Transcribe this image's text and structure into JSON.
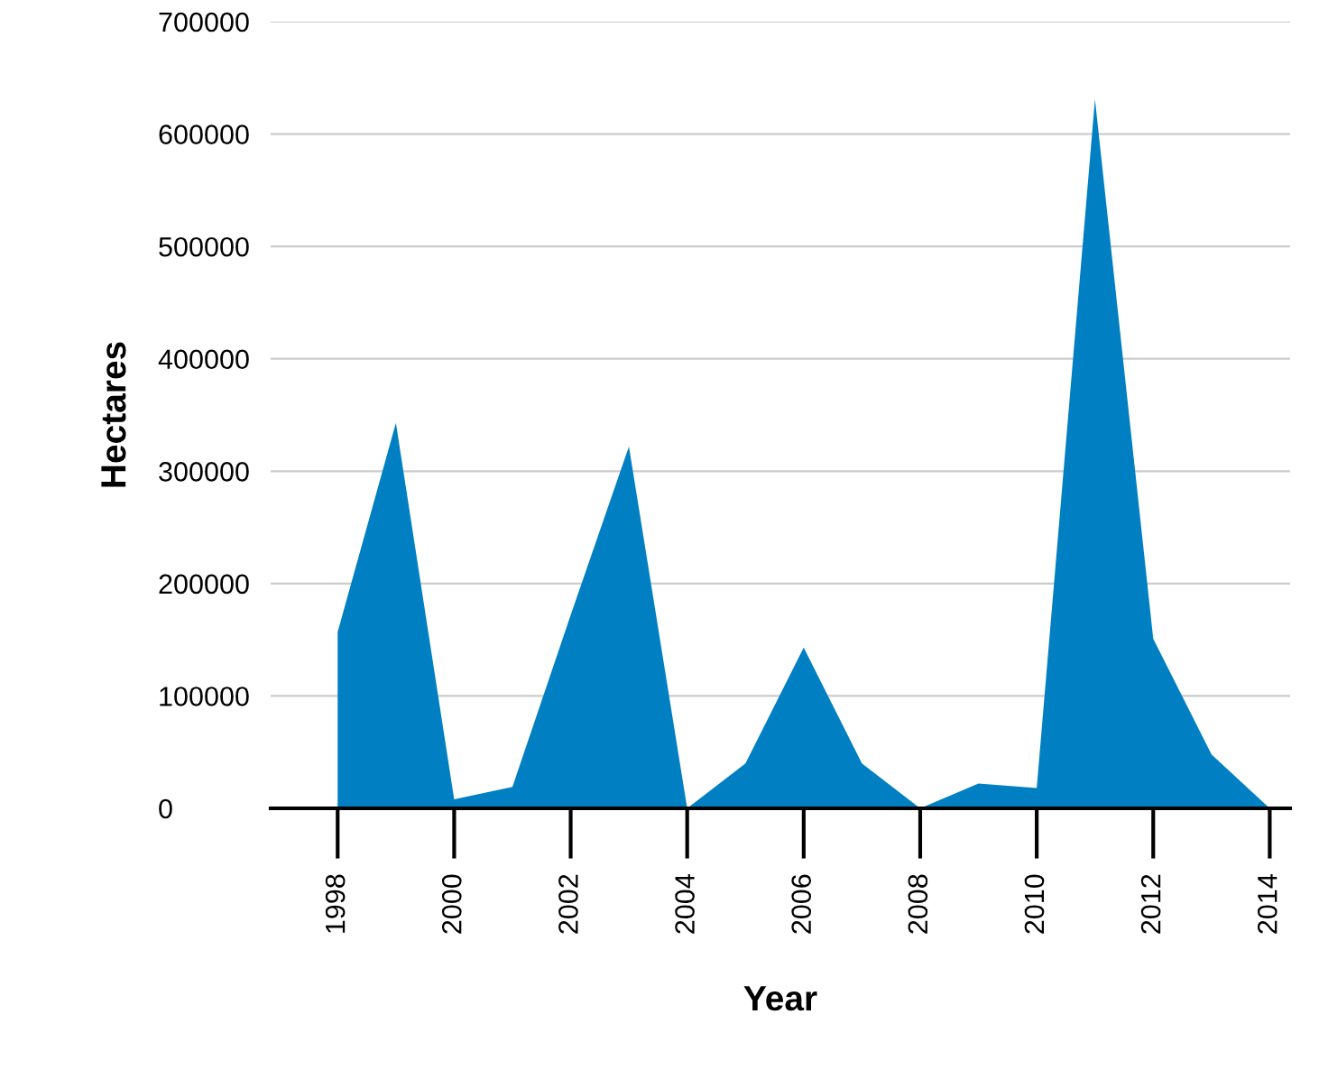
{
  "chart_data": {
    "type": "area",
    "xlabel": "Year",
    "ylabel": "Hectares",
    "x": [
      1998,
      1999,
      2000,
      2001,
      2002,
      2003,
      2004,
      2005,
      2006,
      2007,
      2008,
      2009,
      2010,
      2011,
      2012,
      2013,
      2014
    ],
    "series": [
      {
        "color": "#0080c3",
        "values": [
          157000,
          343000,
          8000,
          19000,
          172000,
          322000,
          0,
          40000,
          143000,
          40000,
          0,
          22000,
          18000,
          631000,
          151000,
          48000,
          0
        ]
      }
    ],
    "xlim": [
      1996.85,
      2014.35
    ],
    "xticks": [
      1998,
      2000,
      2002,
      2004,
      2006,
      2008,
      2010,
      2012,
      2014
    ],
    "ylim": [
      0,
      700000
    ],
    "yticks": [
      0,
      100000,
      200000,
      300000,
      400000,
      500000,
      600000,
      700000
    ],
    "grid": "y",
    "legend": false
  }
}
